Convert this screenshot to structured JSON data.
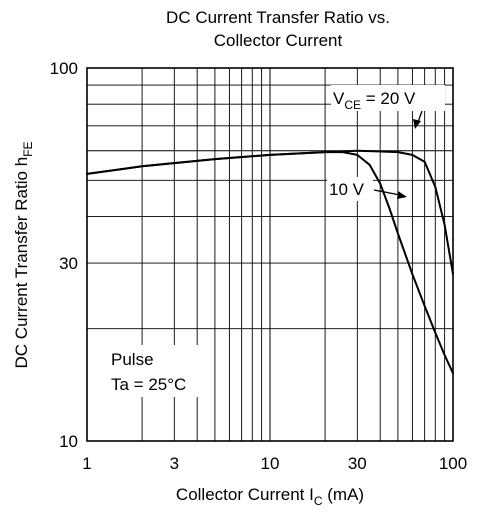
{
  "chart_data": {
    "type": "line",
    "title_line1": "DC Current Transfer Ratio vs.",
    "title_line2": "Collector Current",
    "xlabel": {
      "prefix": "Collector Current  I",
      "sub": "C",
      "suffix": "  (mA)"
    },
    "ylabel": {
      "prefix": "DC Current Transfer Ratio  h",
      "sub": "FE"
    },
    "x_scale": "log",
    "y_scale": "log",
    "xlim": [
      1,
      100
    ],
    "ylim": [
      10,
      100
    ],
    "x_ticks": [
      {
        "value": 1,
        "label": "1"
      },
      {
        "value": 3,
        "label": "3"
      },
      {
        "value": 10,
        "label": "10"
      },
      {
        "value": 30,
        "label": "30"
      },
      {
        "value": 100,
        "label": "100"
      }
    ],
    "y_ticks": [
      {
        "value": 10,
        "label": "10"
      },
      {
        "value": 30,
        "label": "30"
      },
      {
        "value": 100,
        "label": "100"
      }
    ],
    "grid": true,
    "series": [
      {
        "name": "VCE = 20 V",
        "points": [
          [
            1,
            52
          ],
          [
            2,
            54.5
          ],
          [
            5,
            57
          ],
          [
            10,
            58.5
          ],
          [
            20,
            59.5
          ],
          [
            30,
            60
          ],
          [
            50,
            59.5
          ],
          [
            60,
            58.5
          ],
          [
            70,
            56
          ],
          [
            80,
            48
          ],
          [
            90,
            38
          ],
          [
            100,
            28
          ]
        ]
      },
      {
        "name": "10 V",
        "points": [
          [
            1,
            52
          ],
          [
            2,
            54.5
          ],
          [
            5,
            57
          ],
          [
            10,
            58.5
          ],
          [
            20,
            59.5
          ],
          [
            25,
            59.5
          ],
          [
            30,
            58.5
          ],
          [
            35,
            55
          ],
          [
            40,
            49
          ],
          [
            45,
            42
          ],
          [
            50,
            36
          ],
          [
            60,
            28
          ],
          [
            70,
            23
          ],
          [
            80,
            19.5
          ],
          [
            90,
            17
          ],
          [
            100,
            15.2
          ]
        ]
      }
    ],
    "annotations": {
      "vce20": {
        "prefix": "V",
        "sub": "CE",
        "suffix": " = 20 V"
      },
      "v10": {
        "text": "10 V"
      },
      "pulse": "Pulse",
      "ta": "Ta = 25°C"
    }
  }
}
